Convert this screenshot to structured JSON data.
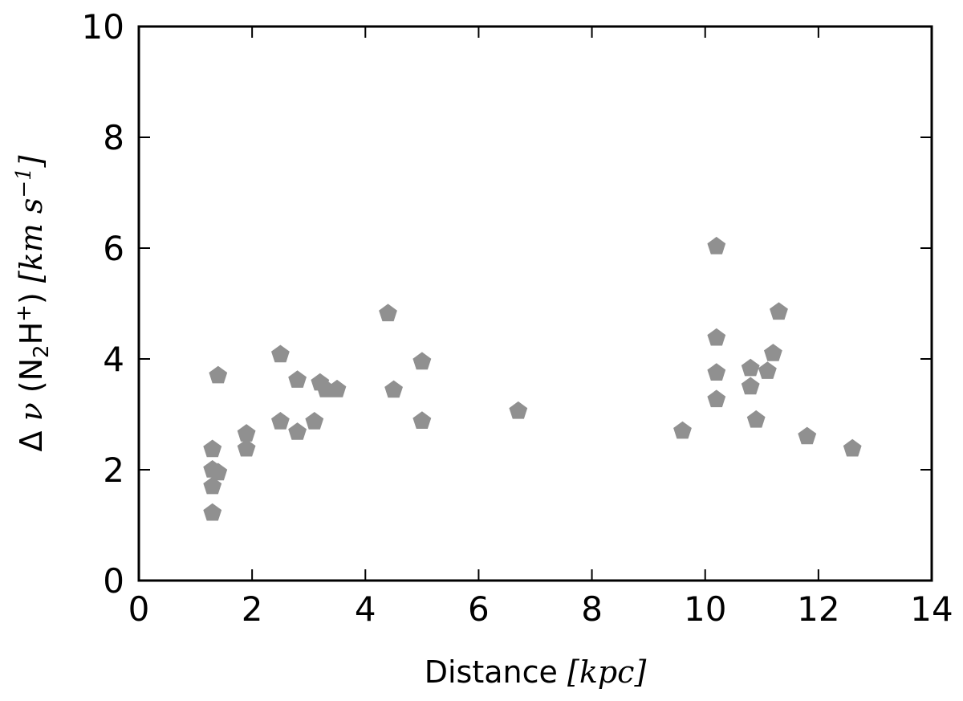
{
  "chart_data": {
    "type": "scatter",
    "title": "",
    "xlabel": {
      "text": "Distance",
      "unit": "kpc"
    },
    "ylabel": {
      "prefix": "Δ",
      "var": "ν",
      "species_open": "(N",
      "sub": "2",
      "species_mid": "H",
      "sup": "+",
      "species_close": ")",
      "unit_open": "[",
      "unit_var": "km s",
      "unit_sup": "−1",
      "unit_close": "]"
    },
    "xlim": [
      0,
      14
    ],
    "ylim": [
      0,
      10
    ],
    "xticks": [
      "0",
      "2",
      "4",
      "6",
      "8",
      "10",
      "12",
      "14"
    ],
    "yticks": [
      "0",
      "2",
      "4",
      "6",
      "8",
      "10"
    ],
    "grid": false,
    "marker": "pentagon",
    "color": "#909090",
    "points": [
      {
        "x": 1.3,
        "y": 2.37
      },
      {
        "x": 1.3,
        "y": 2.0
      },
      {
        "x": 1.4,
        "y": 1.95
      },
      {
        "x": 1.3,
        "y": 1.7
      },
      {
        "x": 1.3,
        "y": 1.22
      },
      {
        "x": 1.4,
        "y": 3.7
      },
      {
        "x": 1.9,
        "y": 2.65
      },
      {
        "x": 1.9,
        "y": 2.38
      },
      {
        "x": 2.5,
        "y": 4.08
      },
      {
        "x": 2.5,
        "y": 2.87
      },
      {
        "x": 2.8,
        "y": 3.62
      },
      {
        "x": 2.8,
        "y": 2.68
      },
      {
        "x": 3.1,
        "y": 2.87
      },
      {
        "x": 3.2,
        "y": 3.57
      },
      {
        "x": 3.3,
        "y": 3.45
      },
      {
        "x": 3.5,
        "y": 3.45
      },
      {
        "x": 4.4,
        "y": 4.82
      },
      {
        "x": 4.5,
        "y": 3.44
      },
      {
        "x": 5.0,
        "y": 3.95
      },
      {
        "x": 5.0,
        "y": 2.88
      },
      {
        "x": 6.7,
        "y": 3.06
      },
      {
        "x": 9.6,
        "y": 2.7
      },
      {
        "x": 10.2,
        "y": 6.03
      },
      {
        "x": 10.2,
        "y": 4.38
      },
      {
        "x": 10.2,
        "y": 3.75
      },
      {
        "x": 10.2,
        "y": 3.27
      },
      {
        "x": 10.8,
        "y": 3.83
      },
      {
        "x": 10.8,
        "y": 3.5
      },
      {
        "x": 10.9,
        "y": 2.9
      },
      {
        "x": 11.1,
        "y": 3.78
      },
      {
        "x": 11.2,
        "y": 4.1
      },
      {
        "x": 11.3,
        "y": 4.85
      },
      {
        "x": 11.8,
        "y": 2.6
      },
      {
        "x": 12.6,
        "y": 2.38
      }
    ]
  }
}
